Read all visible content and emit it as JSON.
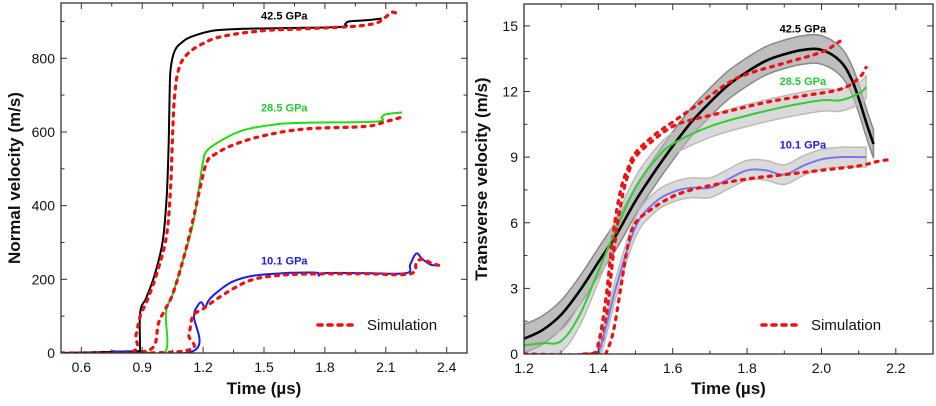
{
  "chart_data": [
    {
      "type": "line",
      "title": "",
      "xlabel": "Time (µs)",
      "ylabel": "Normal velocity (m/s)",
      "xlim": [
        0.5,
        2.5
      ],
      "ylim": [
        0,
        950
      ],
      "xticks": [
        0.6,
        0.9,
        1.2,
        1.5,
        1.8,
        2.1,
        2.4
      ],
      "xtick_labels": [
        "0.6",
        "0.9",
        "1.2",
        "1.5",
        "1.8",
        "2.1",
        "2.4"
      ],
      "yticks": [
        0,
        200,
        400,
        600,
        800
      ],
      "ytick_labels": [
        "0",
        "200",
        "400",
        "600",
        "800"
      ],
      "grid": false,
      "legend": {
        "position": "bottom-right",
        "entries": [
          {
            "label": "Simulation",
            "color": "#ee1111",
            "style": "dashed"
          }
        ]
      },
      "series": [
        {
          "name": "42.5 GPa",
          "kind": "experiment",
          "color": "#000000",
          "x": [
            0.5,
            0.88,
            0.889,
            0.89,
            0.92,
            0.96,
            1.0,
            1.02,
            1.03,
            1.035,
            1.04,
            1.06,
            1.1,
            1.15,
            1.25,
            1.4,
            1.6,
            1.88,
            1.9,
            1.92,
            2.0,
            2.08
          ],
          "y": [
            0,
            5,
            5,
            110,
            150,
            210,
            300,
            420,
            560,
            700,
            770,
            820,
            845,
            860,
            875,
            880,
            882,
            885,
            893,
            900,
            903,
            908
          ]
        },
        {
          "name": "42.5 GPa simulation",
          "kind": "simulation",
          "color": "#ee1111",
          "x": [
            0.5,
            0.84,
            0.87,
            0.89,
            0.93,
            0.98,
            1.02,
            1.04,
            1.05,
            1.06,
            1.08,
            1.12,
            1.2,
            1.3,
            1.5,
            1.7,
            1.9,
            2.0,
            2.06,
            2.1,
            2.13,
            2.16
          ],
          "y": [
            0,
            2,
            50,
            100,
            150,
            230,
            320,
            450,
            600,
            700,
            770,
            810,
            840,
            860,
            875,
            880,
            885,
            890,
            897,
            912,
            925,
            920
          ]
        },
        {
          "name": "28.5 GPa",
          "kind": "experiment",
          "color": "#22dd11",
          "x": [
            0.9,
            1.016,
            1.017,
            1.05,
            1.1,
            1.15,
            1.18,
            1.2,
            1.22,
            1.3,
            1.4,
            1.55,
            1.7,
            2.05,
            2.08,
            2.1,
            2.18
          ],
          "y": [
            5,
            5,
            110,
            160,
            250,
            350,
            450,
            520,
            550,
            580,
            605,
            620,
            625,
            628,
            640,
            648,
            653
          ]
        },
        {
          "name": "28.5 GPa simulation",
          "kind": "simulation",
          "color": "#ee1111",
          "x": [
            0.9,
            0.96,
            0.98,
            1.01,
            1.05,
            1.1,
            1.15,
            1.19,
            1.22,
            1.26,
            1.35,
            1.5,
            1.7,
            2.0,
            2.1,
            2.19
          ],
          "y": [
            2,
            20,
            80,
            115,
            160,
            250,
            360,
            460,
            520,
            540,
            565,
            590,
            608,
            615,
            628,
            642
          ]
        },
        {
          "name": "10.1 GPa",
          "kind": "experiment",
          "color": "#1a1aee",
          "x": [
            0.75,
            1.15,
            1.155,
            1.17,
            1.19,
            1.21,
            1.23,
            1.28,
            1.35,
            1.45,
            1.6,
            1.65,
            1.76,
            1.77,
            1.8,
            2.0,
            2.2,
            2.22,
            2.25,
            2.28,
            2.32,
            2.35
          ],
          "y": [
            5,
            5,
            100,
            125,
            138,
            125,
            145,
            170,
            195,
            210,
            217,
            218,
            218,
            210,
            217,
            217,
            217,
            240,
            270,
            255,
            240,
            238
          ]
        },
        {
          "name": "10.1 GPa simulation",
          "kind": "simulation",
          "color": "#ee1111",
          "x": [
            0.5,
            1.1,
            1.13,
            1.15,
            1.2,
            1.25,
            1.35,
            1.45,
            1.6,
            1.8,
            2.0,
            2.22,
            2.25,
            2.28,
            2.32,
            2.36
          ],
          "y": [
            0,
            5,
            50,
            100,
            120,
            140,
            175,
            200,
            212,
            215,
            215,
            215,
            245,
            255,
            245,
            238
          ]
        }
      ],
      "annotations": [
        {
          "text": "42.5 GPa",
          "x": 1.6,
          "y": 905,
          "color": "#000000"
        },
        {
          "text": "28.5 GPa",
          "x": 1.6,
          "y": 655,
          "color": "#22cc33"
        },
        {
          "text": "10.1 GPa",
          "x": 1.6,
          "y": 240,
          "color": "#1a1aee"
        }
      ]
    },
    {
      "type": "line",
      "title": "",
      "xlabel": "Time (µs)",
      "ylabel": "Transverse velocity (m/s)",
      "xlim": [
        1.2,
        2.3
      ],
      "ylim": [
        0,
        16
      ],
      "xticks": [
        1.2,
        1.4,
        1.6,
        1.8,
        2.0,
        2.2
      ],
      "xtick_labels": [
        "1.2",
        "1.4",
        "1.6",
        "1.8",
        "2.0",
        "2.2"
      ],
      "yticks": [
        0,
        3,
        6,
        9,
        12,
        15
      ],
      "ytick_labels": [
        "0",
        "3",
        "6",
        "9",
        "12",
        "15"
      ],
      "grid": false,
      "legend": {
        "position": "bottom-right",
        "entries": [
          {
            "label": "Simulation",
            "color": "#ee1111",
            "style": "dashed"
          }
        ]
      },
      "series": [
        {
          "name": "42.5 GPa",
          "kind": "experiment",
          "color": "#000000",
          "band_color": "#888888",
          "band_halfwidth": 0.65,
          "x": [
            1.2,
            1.25,
            1.3,
            1.35,
            1.4,
            1.45,
            1.5,
            1.55,
            1.6,
            1.65,
            1.7,
            1.75,
            1.8,
            1.85,
            1.9,
            1.95,
            2.0,
            2.05,
            2.08,
            2.1,
            2.12,
            2.14
          ],
          "y": [
            0.7,
            1.1,
            1.8,
            2.9,
            4.2,
            5.5,
            7.0,
            8.3,
            9.5,
            10.6,
            11.5,
            12.3,
            12.9,
            13.4,
            13.7,
            13.9,
            13.9,
            13.4,
            12.6,
            11.7,
            10.6,
            9.6
          ]
        },
        {
          "name": "42.5 GPa simulation",
          "kind": "simulation",
          "color": "#ee1111",
          "x": [
            1.2,
            1.38,
            1.4,
            1.42,
            1.44,
            1.46,
            1.48,
            1.5,
            1.55,
            1.6,
            1.65,
            1.7,
            1.75,
            1.8,
            1.9,
            2.0,
            2.05
          ],
          "y": [
            0,
            0,
            0.5,
            2.5,
            5.5,
            7.5,
            8.5,
            9.2,
            10.0,
            10.6,
            11.2,
            11.8,
            12.4,
            12.8,
            13.3,
            13.8,
            14.3
          ]
        },
        {
          "name": "28.5 GPa",
          "kind": "experiment",
          "color": "#33cc33",
          "band_color": "#bbbbbb",
          "band_halfwidth": 0.5,
          "x": [
            1.2,
            1.25,
            1.3,
            1.35,
            1.4,
            1.45,
            1.5,
            1.55,
            1.6,
            1.7,
            1.8,
            1.9,
            2.0,
            2.05,
            2.1,
            2.12
          ],
          "y": [
            0.4,
            0.5,
            0.6,
            1.8,
            3.8,
            5.8,
            7.6,
            8.8,
            9.6,
            10.4,
            10.9,
            11.3,
            11.6,
            11.6,
            11.9,
            12.2
          ]
        },
        {
          "name": "28.5 GPa simulation",
          "kind": "simulation",
          "color": "#ee1111",
          "x": [
            1.36,
            1.4,
            1.42,
            1.44,
            1.46,
            1.48,
            1.5,
            1.55,
            1.6,
            1.65,
            1.75,
            1.85,
            1.95,
            2.05,
            2.1,
            2.12
          ],
          "y": [
            0,
            0.2,
            1.5,
            4.5,
            6.8,
            8.2,
            9.0,
            9.8,
            10.4,
            10.7,
            11.1,
            11.5,
            11.8,
            12.1,
            12.6,
            13.1
          ]
        },
        {
          "name": "10.1 GPa",
          "kind": "experiment",
          "color": "#7777ee",
          "band_color": "#bbbbbb",
          "band_halfwidth": 0.45,
          "x": [
            1.4,
            1.42,
            1.45,
            1.5,
            1.55,
            1.6,
            1.65,
            1.7,
            1.75,
            1.8,
            1.85,
            1.9,
            1.95,
            2.0,
            2.05,
            2.1,
            2.12
          ],
          "y": [
            0,
            1.2,
            3.2,
            5.8,
            6.9,
            7.4,
            7.6,
            7.6,
            8.0,
            8.4,
            8.4,
            8.2,
            8.6,
            8.9,
            9.0,
            9.0,
            9.0
          ]
        },
        {
          "name": "10.1 GPa simulation",
          "kind": "simulation",
          "color": "#ee1111",
          "x": [
            1.42,
            1.44,
            1.46,
            1.48,
            1.5,
            1.55,
            1.6,
            1.65,
            1.7,
            1.8,
            1.9,
            2.0,
            2.1,
            2.15,
            2.19
          ],
          "y": [
            0,
            1.0,
            3.0,
            5.0,
            6.0,
            6.7,
            7.2,
            7.5,
            7.7,
            8.0,
            8.2,
            8.4,
            8.6,
            8.8,
            8.9
          ]
        }
      ],
      "annotations": [
        {
          "text": "42.5 GPa",
          "x": 1.95,
          "y": 14.7,
          "color": "#000000"
        },
        {
          "text": "28.5 GPa",
          "x": 1.95,
          "y": 12.3,
          "color": "#22cc33"
        },
        {
          "text": "10.1 GPa",
          "x": 1.95,
          "y": 9.4,
          "color": "#1a1aee"
        }
      ]
    }
  ]
}
